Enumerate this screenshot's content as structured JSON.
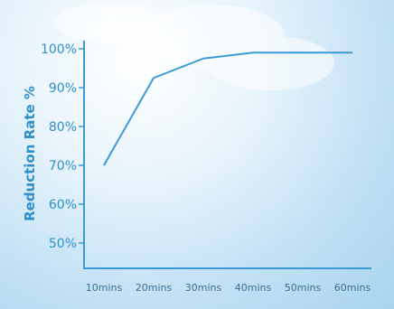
{
  "colors": {
    "axis": "#3a9ad6",
    "line": "#3a9ad6",
    "y_tick_text": "#2f8fc8",
    "x_tick_text": "#3d6f92"
  },
  "chart_data": {
    "type": "line",
    "ylabel": "Reduction Rate %",
    "xlabel": "",
    "title": "",
    "categories": [
      "10mins",
      "20mins",
      "30mins",
      "40mins",
      "50mins",
      "60mins"
    ],
    "y_tick_labels": [
      "50%",
      "60%",
      "70%",
      "80%",
      "90%",
      "100%"
    ],
    "y_ticks": [
      50,
      60,
      70,
      80,
      90,
      100
    ],
    "ylim": [
      40,
      100
    ],
    "grid": false,
    "series": [
      {
        "values": [
          70,
          92.5,
          97.5,
          99,
          99,
          99
        ]
      }
    ]
  }
}
